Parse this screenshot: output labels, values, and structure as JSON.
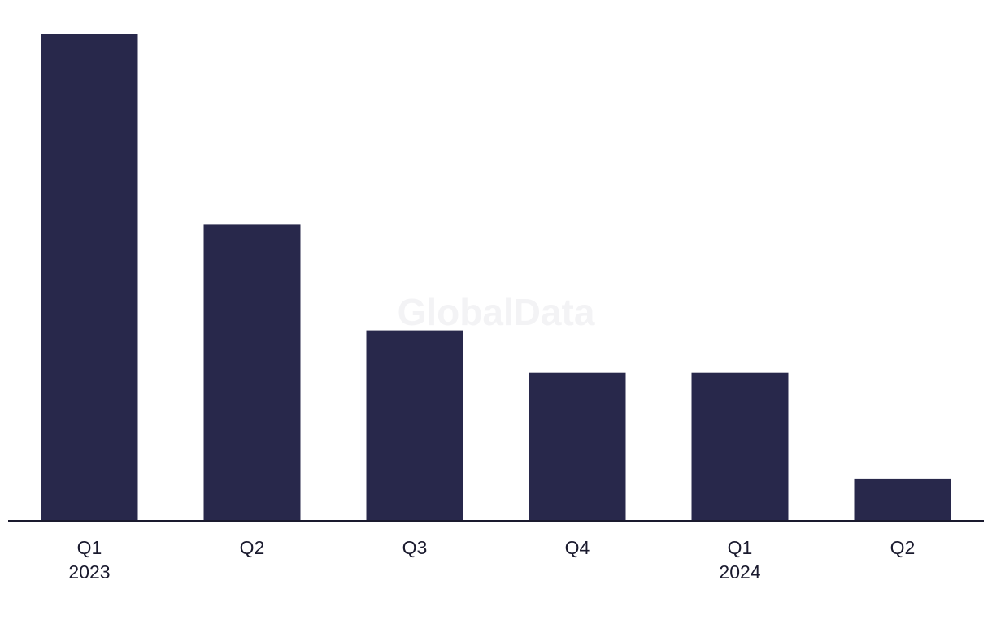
{
  "watermark": "GlobalData",
  "chart_data": {
    "type": "bar",
    "categories": [
      "Q1",
      "Q2",
      "Q3",
      "Q4",
      "Q1",
      "Q2"
    ],
    "year_labels": [
      "2023",
      "",
      "",
      "",
      "2024",
      ""
    ],
    "values": [
      11.5,
      7,
      4.5,
      3.5,
      3.5,
      1
    ],
    "ylim": [
      0,
      11.5
    ],
    "grid": false,
    "legend": "none",
    "bar_color": "#28284b",
    "axis_color": "#1a1a2e"
  }
}
